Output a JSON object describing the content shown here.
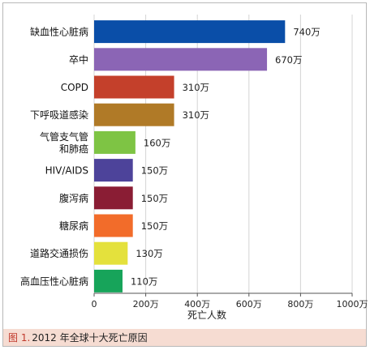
{
  "chart_data": {
    "type": "bar",
    "orientation": "horizontal",
    "title": "",
    "xlabel": "死亡人数",
    "ylabel": "",
    "xlim": [
      0,
      1000
    ],
    "x_ticks": [
      0,
      200,
      400,
      600,
      800,
      1000
    ],
    "x_tick_labels": [
      "0",
      "200万",
      "400万",
      "600万",
      "800万",
      "1000万"
    ],
    "grid": "vertical",
    "legend": "none",
    "categories": [
      [
        "缺血性心脏病"
      ],
      [
        "卒中"
      ],
      [
        "COPD"
      ],
      [
        "下呼吸道感染"
      ],
      [
        "气管支气管",
        "和肺癌"
      ],
      [
        "HIV/AIDS"
      ],
      [
        "腹泻病"
      ],
      [
        "糖尿病"
      ],
      [
        "道路交通损伤"
      ],
      [
        "高血压性心脏病"
      ]
    ],
    "values": [
      740,
      670,
      310,
      310,
      160,
      150,
      150,
      150,
      130,
      110
    ],
    "value_labels": [
      "740万",
      "670万",
      "310万",
      "310万",
      "160万",
      "150万",
      "150万",
      "150万",
      "130万",
      "110万"
    ],
    "colors": [
      "#0a4ea8",
      "#8b65b5",
      "#c4402b",
      "#b07a27",
      "#7ec444",
      "#4d439a",
      "#8a1d34",
      "#f26c2a",
      "#e4e13c",
      "#17a45a"
    ]
  },
  "caption": {
    "label": "图 1.",
    "text": "2012 年全球十大死亡原因"
  }
}
